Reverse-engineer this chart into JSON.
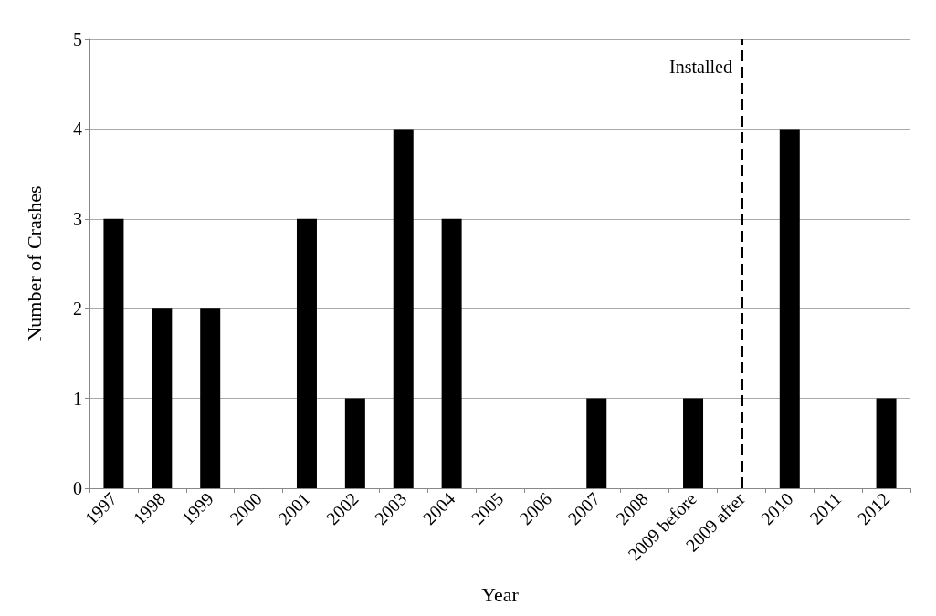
{
  "chart_data": {
    "type": "bar",
    "xlabel": "Year",
    "ylabel": "Number of Crashes",
    "categories": [
      "1997",
      "1998",
      "1999",
      "2000",
      "2001",
      "2002",
      "2003",
      "2004",
      "2005",
      "2006",
      "2007",
      "2008",
      "2009 before",
      "2009 after",
      "2010",
      "2011",
      "2012"
    ],
    "values": [
      3,
      2,
      2,
      0,
      3,
      1,
      4,
      3,
      0,
      0,
      1,
      0,
      1,
      0,
      4,
      0,
      1
    ],
    "color": "#000000",
    "ylim": [
      0,
      5
    ],
    "yticks": [
      0,
      1,
      2,
      3,
      4,
      5
    ],
    "grid": "y",
    "ref_lines": [
      {
        "axis": "x",
        "value": "2009 after",
        "label": "Installed",
        "color": "#000000",
        "line_style": "dashed"
      }
    ]
  }
}
